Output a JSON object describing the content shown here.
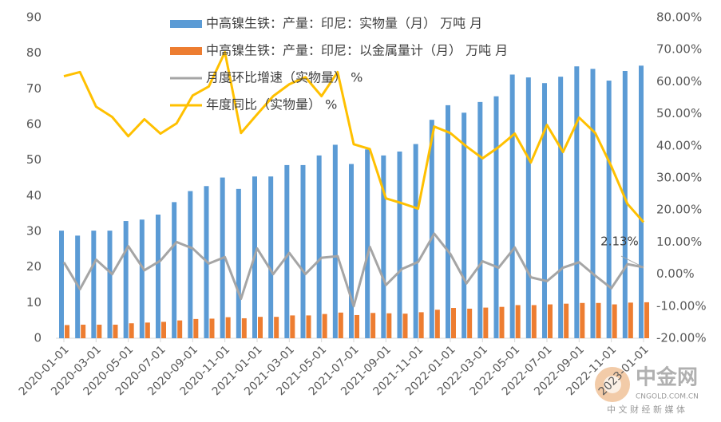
{
  "chart_data": {
    "type": "bar_line",
    "categories": [
      "2020-01-01",
      null,
      "2020-03-01",
      null,
      "2020-05-01",
      null,
      "2020-07-01",
      null,
      "2020-09-01",
      null,
      "2020-11-01",
      null,
      "2021-01-01",
      null,
      "2021-03-01",
      null,
      "2021-05-01",
      null,
      "2021-07-01",
      null,
      "2021-09-01",
      null,
      "2021-11-01",
      null,
      "2022-01-01",
      null,
      "2022-03-01",
      null,
      "2022-05-01",
      null,
      "2022-07-01",
      null,
      "2022-09-01",
      null,
      "2022-11-01",
      null,
      "2023-01-01"
    ],
    "series": [
      {
        "name": "中高镍生铁：产量：印尼：实物量（月） 万吨 月",
        "color": "#5b9bd5",
        "kind": "bar",
        "values": [
          30.2,
          28.8,
          30.2,
          30.2,
          32.9,
          33.3,
          34.7,
          38.2,
          41.3,
          42.7,
          45.1,
          41.9,
          45.4,
          45.4,
          48.6,
          48.6,
          51.3,
          54.3,
          48.9,
          53.0,
          51.3,
          52.4,
          54.5,
          61.3,
          65.4,
          63.3,
          66.3,
          67.9,
          74.0,
          73.2,
          71.6,
          73.4,
          76.3,
          75.6,
          72.3,
          75.0,
          76.5
        ]
      },
      {
        "name": "中高镍生铁：产量：印尼：以金属量计（月） 万吨 月",
        "color": "#ed7d31",
        "kind": "bar",
        "values": [
          3.7,
          3.8,
          3.8,
          3.8,
          4.2,
          4.4,
          4.6,
          5.0,
          5.4,
          5.5,
          5.9,
          5.6,
          6.0,
          6.0,
          6.4,
          6.4,
          6.8,
          7.2,
          6.5,
          7.1,
          7.0,
          6.9,
          7.3,
          8.0,
          8.5,
          8.3,
          8.6,
          8.8,
          9.3,
          9.3,
          9.5,
          9.7,
          9.9,
          9.9,
          9.5,
          10.0,
          10.1
        ]
      },
      {
        "name": "月度环比增速（实物量） %",
        "color": "#a5a5a5",
        "kind": "line",
        "axis": "y2",
        "values": [
          3.7,
          -4.7,
          4.5,
          0,
          8.7,
          1.2,
          4.2,
          10.0,
          8.0,
          3.3,
          5.3,
          -7.7,
          8.0,
          0,
          6.6,
          0,
          5.1,
          5.6,
          -10.0,
          8.5,
          -3.4,
          1.6,
          3.8,
          12.6,
          6.3,
          -2.9,
          4.0,
          2.0,
          8.3,
          -1.0,
          -2.2,
          2.0,
          3.7,
          -0.5,
          -4.4,
          3.1,
          2.13
        ],
        "value_labels": [
          null,
          null,
          null,
          null,
          null,
          null,
          null,
          null,
          null,
          null,
          null,
          null,
          null,
          null,
          null,
          null,
          null,
          null,
          null,
          null,
          null,
          null,
          null,
          null,
          null,
          null,
          null,
          null,
          null,
          null,
          null,
          null,
          null,
          null,
          null,
          null,
          "2.13%"
        ]
      },
      {
        "name": "年度同比（实物量） %",
        "color": "#ffc000",
        "kind": "line",
        "axis": "y2",
        "values": [
          61.7,
          63,
          52.2,
          49,
          43,
          48.3,
          43.8,
          47,
          55.7,
          58.5,
          69.2,
          44,
          49.8,
          55.5,
          59.2,
          61.4,
          55.5,
          63,
          40.5,
          39,
          23.6,
          22.1,
          20.4,
          46,
          44,
          39.8,
          36.1,
          39.6,
          43.8,
          34.8,
          46.5,
          38.1,
          48.8,
          44,
          33.6,
          21.9,
          16.2
        ]
      }
    ],
    "ylim": [
      0,
      90
    ],
    "yticks": [
      0,
      10,
      20,
      30,
      40,
      50,
      60,
      70,
      80,
      90
    ],
    "y2lim": [
      -20,
      80
    ],
    "y2ticks": [
      {
        "value": -20,
        "label": "-20.00%"
      },
      {
        "value": -10,
        "label": "-10.00%"
      },
      {
        "value": 0,
        "label": "0.00%"
      },
      {
        "value": 10,
        "label": "10.00%"
      },
      {
        "value": 20,
        "label": "20.00%"
      },
      {
        "value": 30,
        "label": "30.00%"
      },
      {
        "value": 40,
        "label": "40.00%"
      },
      {
        "value": 50,
        "label": "50.00%"
      },
      {
        "value": 60,
        "label": "60.00%"
      },
      {
        "value": 70,
        "label": "70.00%"
      },
      {
        "value": 80,
        "label": "80.00%"
      }
    ],
    "grid": false,
    "legend": "top"
  },
  "watermark": {
    "brand": "中金网",
    "site": "CNGOLD.COM.CN",
    "slogan": "中 文 财 经 新 媒 体"
  }
}
